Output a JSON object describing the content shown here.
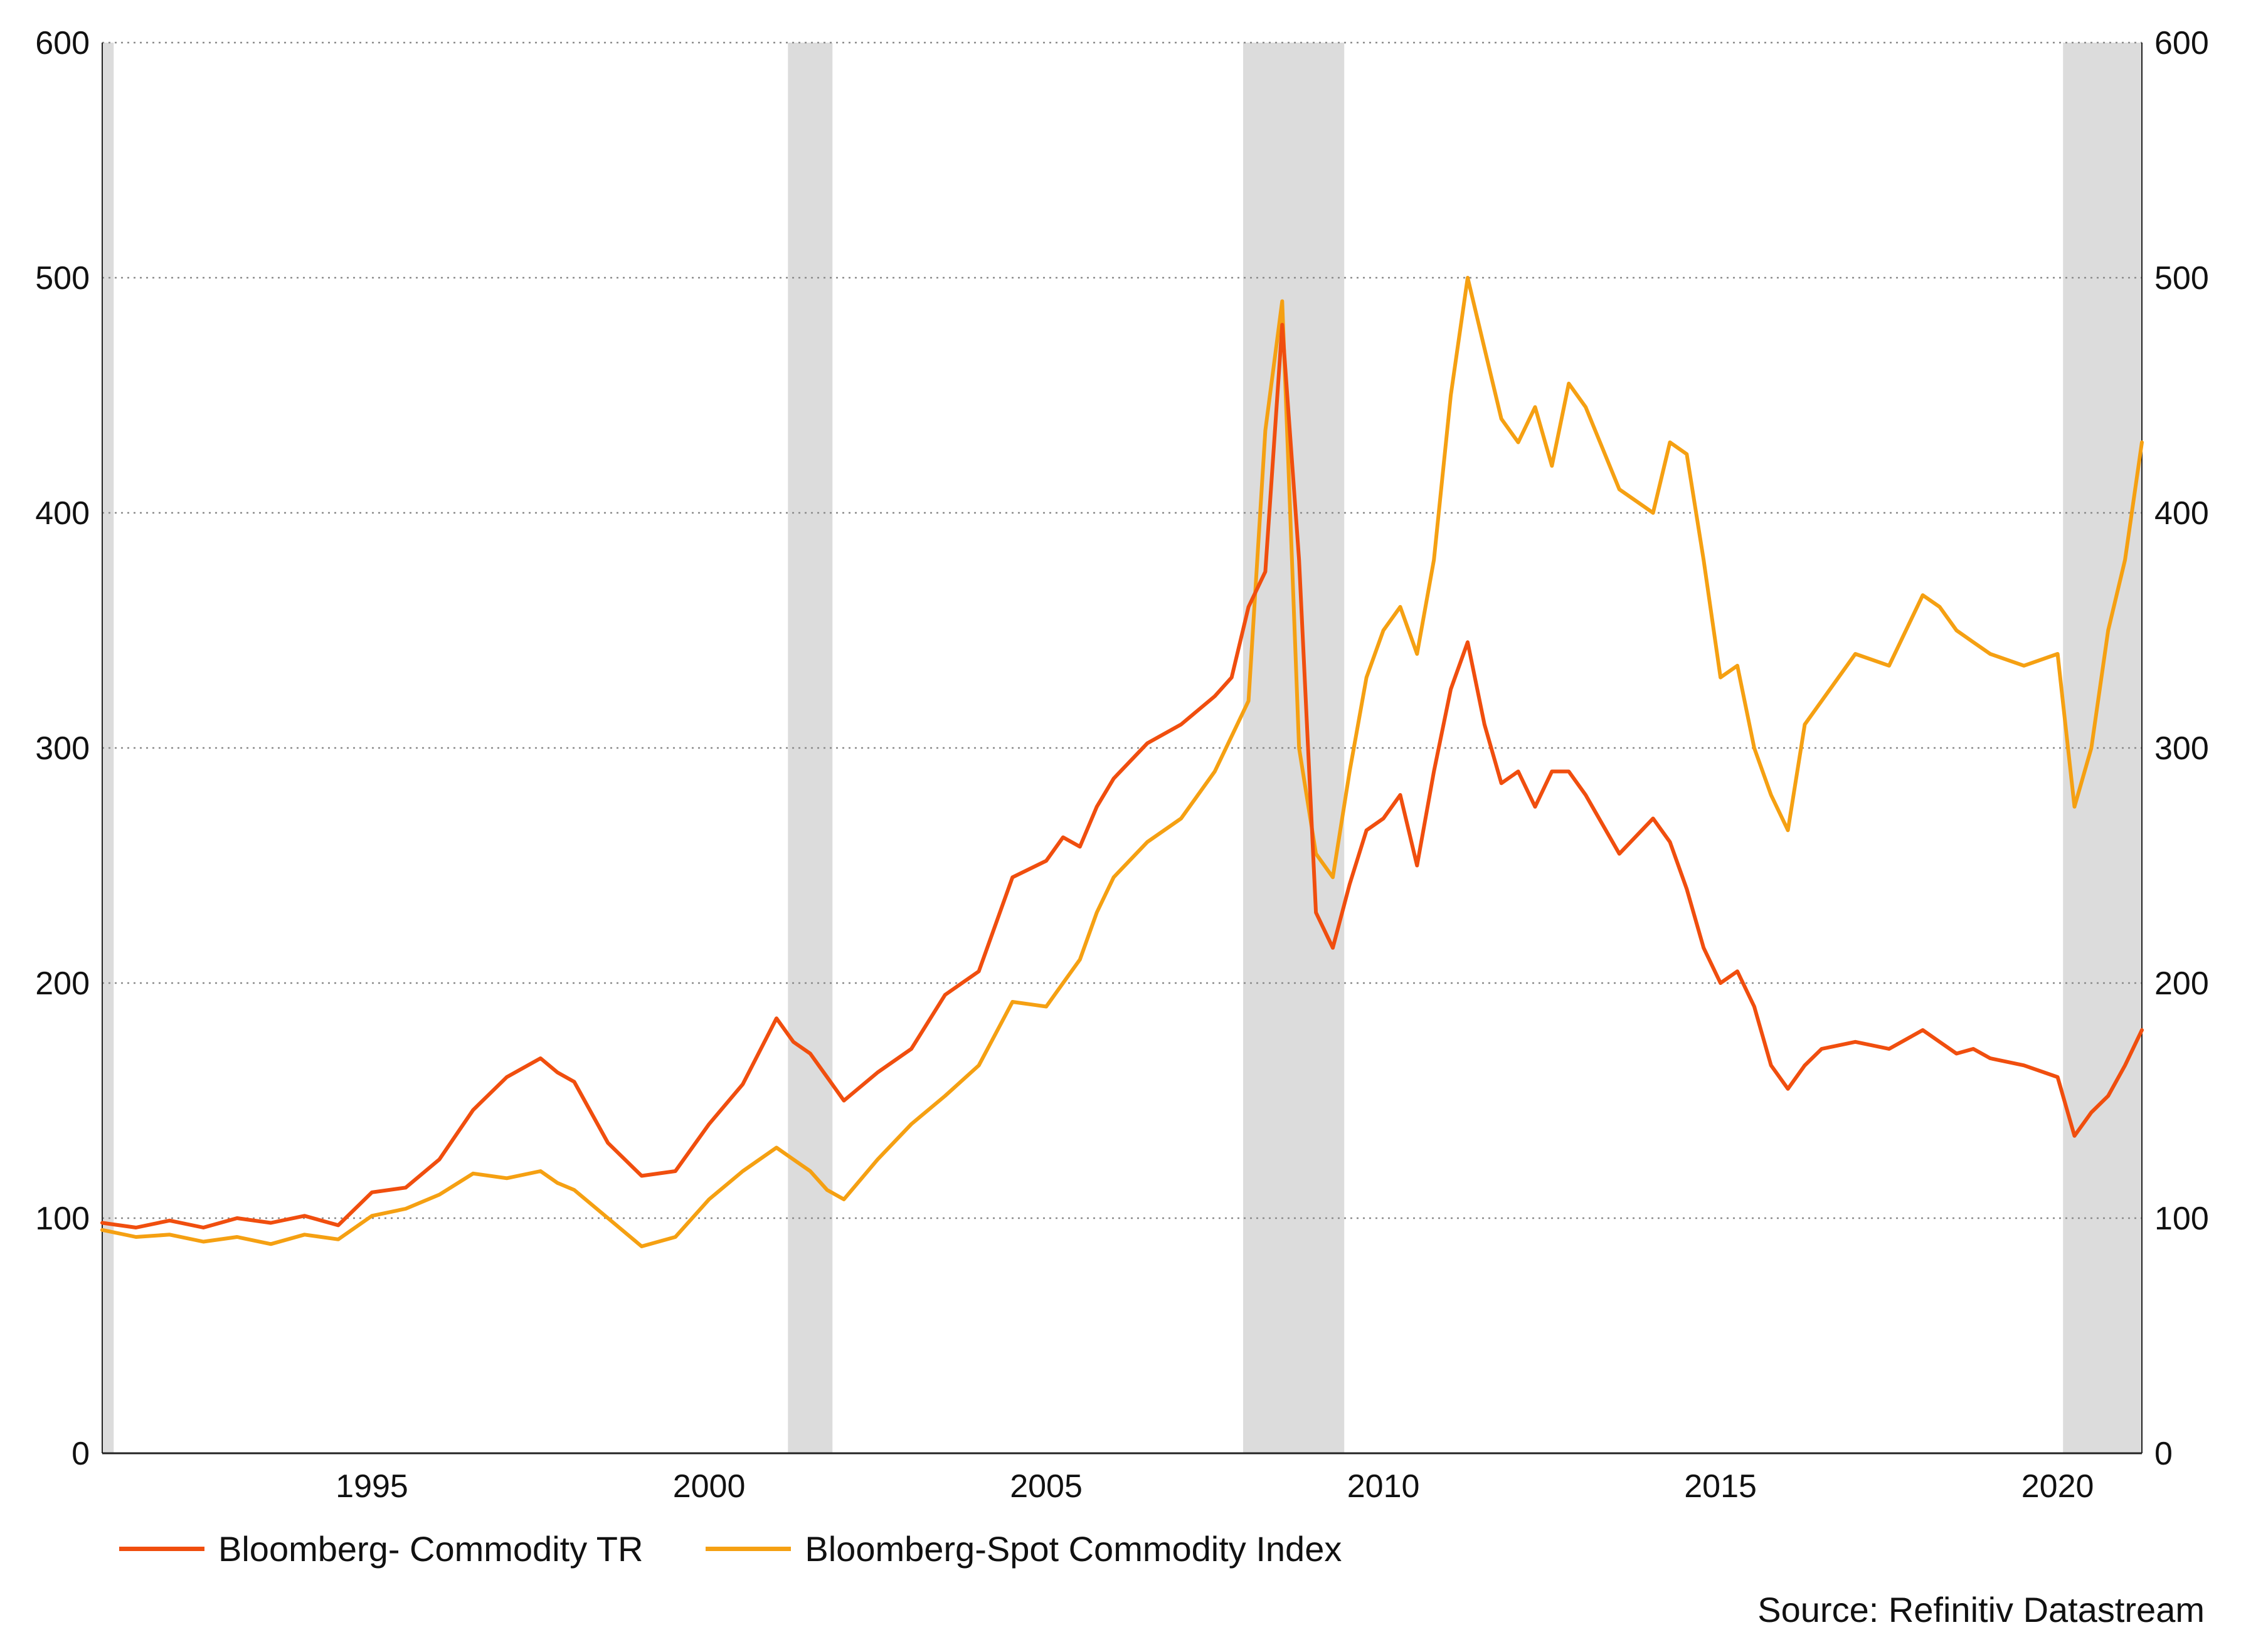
{
  "chart_data": {
    "type": "line",
    "title": "",
    "xlabel": "",
    "ylabel": "",
    "ylim": [
      0,
      600
    ],
    "y2lim": [
      0,
      600
    ],
    "xlim": [
      1991.0,
      2021.25
    ],
    "yticks": [
      0,
      100,
      200,
      300,
      400,
      500,
      600
    ],
    "xticks": [
      "1995",
      "2000",
      "2005",
      "2010",
      "2015",
      "2020"
    ],
    "xtick_values": [
      1995,
      2000,
      2005,
      2010,
      2015,
      2020
    ],
    "grid": "horizontal-dotted",
    "recession_bands": [
      [
        1991.0,
        1991.17
      ],
      [
        2001.17,
        2001.83
      ],
      [
        2007.92,
        2009.42
      ],
      [
        2020.08,
        2021.25
      ]
    ],
    "series": [
      {
        "name": "Bloomberg- Commodity TR",
        "color": "#F04E0E",
        "x": [
          1991.0,
          1991.5,
          1992.0,
          1992.5,
          1993.0,
          1993.5,
          1994.0,
          1994.5,
          1995.0,
          1995.5,
          1996.0,
          1996.5,
          1997.0,
          1997.5,
          1997.75,
          1998.0,
          1998.5,
          1999.0,
          1999.5,
          2000.0,
          2000.5,
          2001.0,
          2001.25,
          2001.5,
          2001.75,
          2002.0,
          2002.5,
          2003.0,
          2003.5,
          2004.0,
          2004.5,
          2005.0,
          2005.25,
          2005.5,
          2005.75,
          2006.0,
          2006.5,
          2007.0,
          2007.5,
          2007.75,
          2008.0,
          2008.25,
          2008.5,
          2008.75,
          2009.0,
          2009.25,
          2009.5,
          2009.75,
          2010.0,
          2010.25,
          2010.5,
          2010.75,
          2011.0,
          2011.25,
          2011.5,
          2011.75,
          2012.0,
          2012.25,
          2012.5,
          2012.75,
          2013.0,
          2013.5,
          2014.0,
          2014.25,
          2014.5,
          2014.75,
          2015.0,
          2015.25,
          2015.5,
          2015.75,
          2016.0,
          2016.25,
          2016.5,
          2017.0,
          2017.5,
          2018.0,
          2018.25,
          2018.5,
          2018.75,
          2019.0,
          2019.5,
          2020.0,
          2020.25,
          2020.5,
          2020.75,
          2021.0,
          2021.25
        ],
        "values": [
          98,
          96,
          99,
          96,
          100,
          98,
          101,
          97,
          111,
          113,
          125,
          146,
          160,
          168,
          162,
          158,
          132,
          118,
          120,
          140,
          157,
          185,
          175,
          170,
          160,
          150,
          162,
          172,
          195,
          205,
          245,
          252,
          262,
          258,
          275,
          287,
          302,
          310,
          322,
          330,
          360,
          375,
          480,
          380,
          230,
          215,
          242,
          265,
          270,
          280,
          250,
          290,
          325,
          345,
          310,
          285,
          290,
          275,
          290,
          290,
          280,
          255,
          270,
          260,
          240,
          215,
          200,
          205,
          190,
          165,
          155,
          165,
          172,
          175,
          172,
          180,
          175,
          170,
          172,
          168,
          165,
          160,
          135,
          145,
          152,
          165,
          180
        ]
      },
      {
        "name": "Bloomberg-Spot Commodity Index",
        "color": "#F5A012",
        "x": [
          1991.0,
          1991.5,
          1992.0,
          1992.5,
          1993.0,
          1993.5,
          1994.0,
          1994.5,
          1995.0,
          1995.5,
          1996.0,
          1996.5,
          1997.0,
          1997.5,
          1997.75,
          1998.0,
          1998.5,
          1999.0,
          1999.5,
          2000.0,
          2000.5,
          2001.0,
          2001.25,
          2001.5,
          2001.75,
          2002.0,
          2002.5,
          2003.0,
          2003.5,
          2004.0,
          2004.5,
          2005.0,
          2005.25,
          2005.5,
          2005.75,
          2006.0,
          2006.5,
          2007.0,
          2007.5,
          2007.75,
          2008.0,
          2008.25,
          2008.5,
          2008.75,
          2009.0,
          2009.25,
          2009.5,
          2009.75,
          2010.0,
          2010.25,
          2010.5,
          2010.75,
          2011.0,
          2011.25,
          2011.5,
          2011.75,
          2012.0,
          2012.25,
          2012.5,
          2012.75,
          2013.0,
          2013.5,
          2014.0,
          2014.25,
          2014.5,
          2014.75,
          2015.0,
          2015.25,
          2015.5,
          2015.75,
          2016.0,
          2016.25,
          2016.5,
          2017.0,
          2017.5,
          2018.0,
          2018.25,
          2018.5,
          2018.75,
          2019.0,
          2019.5,
          2020.0,
          2020.25,
          2020.5,
          2020.75,
          2021.0,
          2021.25
        ],
        "values": [
          95,
          92,
          93,
          90,
          92,
          89,
          93,
          91,
          101,
          104,
          110,
          119,
          117,
          120,
          115,
          112,
          100,
          88,
          92,
          108,
          120,
          130,
          125,
          120,
          112,
          108,
          125,
          140,
          152,
          165,
          192,
          190,
          200,
          210,
          230,
          245,
          260,
          270,
          290,
          305,
          320,
          435,
          490,
          300,
          255,
          245,
          290,
          330,
          350,
          360,
          340,
          380,
          450,
          500,
          470,
          440,
          430,
          445,
          420,
          455,
          445,
          410,
          400,
          430,
          425,
          380,
          330,
          335,
          300,
          280,
          265,
          310,
          320,
          340,
          335,
          365,
          360,
          350,
          345,
          340,
          335,
          340,
          275,
          300,
          350,
          380,
          430
        ]
      }
    ],
    "legend": {
      "position": "bottom-left",
      "entries": [
        "Bloomberg- Commodity TR",
        "Bloomberg-Spot Commodity Index"
      ]
    },
    "source": "Source: Refinitiv Datastream"
  }
}
